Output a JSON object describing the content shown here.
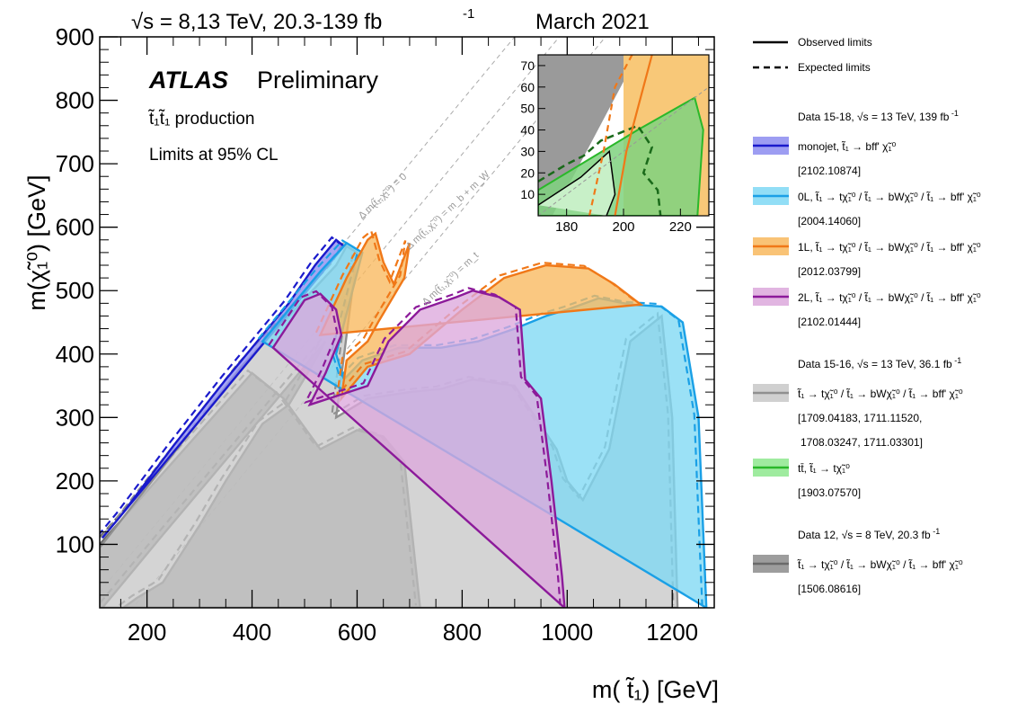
{
  "header": {
    "energy_text": "√s = 8,13 TeV, 20.3-139 fb",
    "energy_sup": "-1",
    "date": "March 2021"
  },
  "atlas": {
    "label": "ATLAS",
    "status": "Preliminary",
    "process": "t̃₁t̃₁ production",
    "cl": "Limits at 95% CL"
  },
  "diagonals": {
    "d1": "Δ m(t̃₁,χ̃₁⁰) = 0",
    "d2": "Δ m(t̃₁,χ̃₁⁰) = m_b + m_W",
    "d3": "Δ m(t̃₁,χ̃₁⁰) = m_t"
  },
  "legend": {
    "observed": "Observed limits",
    "expected": "Expected limits",
    "groups": [
      {
        "title": "Data 15-18, √s = 13 TeV, 139 fb",
        "title_sup": "-1",
        "entries": [
          {
            "label": "monojet, t̃₁ → bff' χ̃₁⁰",
            "ref": "[2102.10874]",
            "fill": "#8c8cf0",
            "line": "#1a1acc"
          },
          {
            "label": "0L, t̃₁ → tχ̃₁⁰ / t̃₁ → bWχ̃₁⁰ / t̃₁ → bff' χ̃₁⁰",
            "ref": "[2004.14060]",
            "fill": "#7fd8f4",
            "line": "#1aa0e6"
          },
          {
            "label": "1L, t̃₁ → tχ̃₁⁰ / t̃₁ → bWχ̃₁⁰ / t̃₁ → bff' χ̃₁⁰",
            "ref": "[2012.03799]",
            "fill": "#f8b85e",
            "line": "#f07818"
          },
          {
            "label": "2L, t̃₁ → tχ̃₁⁰ / t̃₁ → bWχ̃₁⁰ / t̃₁ → bff' χ̃₁⁰",
            "ref": "[2102.01444]",
            "fill": "#dca8dc",
            "line": "#8c1a9a"
          }
        ]
      },
      {
        "title": "Data 15-16, √s = 13 TeV, 36.1 fb",
        "title_sup": "-1",
        "entries": [
          {
            "label": "t̃₁ → tχ̃₁⁰ / t̃₁ → bWχ̃₁⁰ / t̃₁ → bff' χ̃₁⁰",
            "ref": "[1709.04183, 1711.11520,",
            "ref2": "1708.03247, 1711.03301]",
            "fill": "#c8c8c8",
            "line": "#909090"
          },
          {
            "label": "tt̄, t̃₁ → tχ̃₁⁰",
            "ref": "[1903.07570]",
            "fill": "#8ee88e",
            "line": "#2ab82a"
          }
        ]
      },
      {
        "title": "Data 12, √s = 8 TeV, 20.3 fb",
        "title_sup": "-1",
        "entries": [
          {
            "label": "t̃₁ → tχ̃₁⁰ / t̃₁ → bWχ̃₁⁰ / t̃₁ → bff' χ̃₁⁰",
            "ref": "[1506.08616]",
            "fill": "#8c8c8c",
            "line": "#6a6a6a"
          }
        ]
      }
    ]
  },
  "chart_data": [
    {
      "type": "area",
      "xlabel": "m( t̃₁) [GeV]",
      "ylabel": "m(χ̃₁⁰) [GeV]",
      "xlim": [
        110,
        1280
      ],
      "ylim": [
        0,
        900
      ],
      "xticks": [
        200,
        400,
        600,
        800,
        1000,
        1200
      ],
      "yticks": [
        100,
        200,
        300,
        400,
        500,
        600,
        700,
        800,
        900
      ],
      "grid": false,
      "legend_placement": "right-outside",
      "series": [
        {
          "name": "8 TeV, 20.3 fb-1",
          "fill": "#8c8c8c",
          "line": "#6a6a6a",
          "dash": false,
          "points": [
            [
              155,
              0
            ],
            [
              180,
              15
            ],
            [
              230,
              40
            ],
            [
              300,
              130
            ],
            [
              350,
              200
            ],
            [
              420,
              290
            ],
            [
              470,
              320
            ],
            [
              520,
              390
            ],
            [
              540,
              420
            ],
            [
              230,
              115
            ],
            [
              115,
              0
            ],
            [
              110,
              0
            ],
            [
              110,
              100
            ],
            [
              400,
              370
            ],
            [
              460,
              330
            ],
            [
              530,
              250
            ],
            [
              600,
              280
            ],
            [
              650,
              270
            ],
            [
              690,
              230
            ],
            [
              720,
              0
            ]
          ]
        },
        {
          "name": "13 TeV, 36.1 fb-1",
          "fill": "#c8c8c8",
          "line": "#909090",
          "dash": false,
          "points": [
            [
              110,
              0
            ],
            [
              110,
              95
            ],
            [
              380,
              380
            ],
            [
              560,
              540
            ],
            [
              580,
              570
            ],
            [
              600,
              560
            ],
            [
              560,
              300
            ],
            [
              620,
              330
            ],
            [
              700,
              340
            ],
            [
              760,
              345
            ],
            [
              820,
              360
            ],
            [
              900,
              350
            ],
            [
              940,
              300
            ],
            [
              980,
              250
            ],
            [
              1000,
              200
            ],
            [
              1030,
              170
            ],
            [
              1080,
              250
            ],
            [
              1120,
              420
            ],
            [
              1180,
              460
            ],
            [
              1200,
              300
            ],
            [
              1210,
              0
            ]
          ]
        },
        {
          "name": "monojet, 139 fb-1",
          "fill": "#8c8cf0",
          "line": "#1a1acc",
          "dash": false,
          "points": [
            [
              115,
              110
            ],
            [
              150,
              145
            ],
            [
              250,
              255
            ],
            [
              350,
              360
            ],
            [
              420,
              430
            ],
            [
              470,
              480
            ],
            [
              520,
              540
            ],
            [
              560,
              580
            ],
            [
              575,
              570
            ]
          ]
        },
        {
          "name": "0L, 139 fb-1",
          "fill": "#7fd8f4",
          "line": "#1aa0e6",
          "dash": false,
          "points": [
            [
              420,
              420
            ],
            [
              530,
              530
            ],
            [
              580,
              575
            ],
            [
              610,
              560
            ],
            [
              560,
              400
            ],
            [
              575,
              360
            ],
            [
              610,
              390
            ],
            [
              680,
              410
            ],
            [
              760,
              410
            ],
            [
              830,
              420
            ],
            [
              900,
              440
            ],
            [
              960,
              460
            ],
            [
              1000,
              470
            ],
            [
              1060,
              488
            ],
            [
              1120,
              478
            ],
            [
              1180,
              475
            ],
            [
              1220,
              450
            ],
            [
              1250,
              300
            ],
            [
              1260,
              100
            ],
            [
              1265,
              0
            ]
          ]
        },
        {
          "name": "1L, 139 fb-1",
          "fill": "#f8b85e",
          "line": "#f07818",
          "dash": false,
          "points": [
            [
              530,
              430
            ],
            [
              580,
              520
            ],
            [
              620,
              580
            ],
            [
              635,
              590
            ],
            [
              650,
              545
            ],
            [
              670,
              510
            ],
            [
              700,
              575
            ],
            [
              690,
              520
            ],
            [
              640,
              450
            ],
            [
              620,
              420
            ],
            [
              580,
              390
            ],
            [
              570,
              330
            ],
            [
              620,
              380
            ],
            [
              700,
              400
            ],
            [
              800,
              470
            ],
            [
              880,
              520
            ],
            [
              960,
              540
            ],
            [
              1040,
              535
            ],
            [
              1090,
              510
            ],
            [
              1140,
              478
            ]
          ]
        },
        {
          "name": "2L, 139 fb-1",
          "fill": "#dca8dc",
          "line": "#8c1a9a",
          "dash": false,
          "points": [
            [
              440,
              410
            ],
            [
              500,
              485
            ],
            [
              530,
              495
            ],
            [
              560,
              470
            ],
            [
              570,
              430
            ],
            [
              540,
              370
            ],
            [
              510,
              320
            ],
            [
              620,
              350
            ],
            [
              660,
              420
            ],
            [
              720,
              470
            ],
            [
              790,
              490
            ],
            [
              820,
              500
            ],
            [
              870,
              490
            ],
            [
              910,
              470
            ],
            [
              920,
              360
            ],
            [
              950,
              330
            ],
            [
              970,
              200
            ],
            [
              990,
              50
            ],
            [
              995,
              0
            ]
          ]
        }
      ],
      "inset": {
        "xlim": [
          170,
          230
        ],
        "ylim": [
          0,
          75
        ],
        "xticks": [
          180,
          200,
          220
        ],
        "yticks": [
          10,
          20,
          30,
          40,
          50,
          60,
          70
        ]
      }
    }
  ]
}
